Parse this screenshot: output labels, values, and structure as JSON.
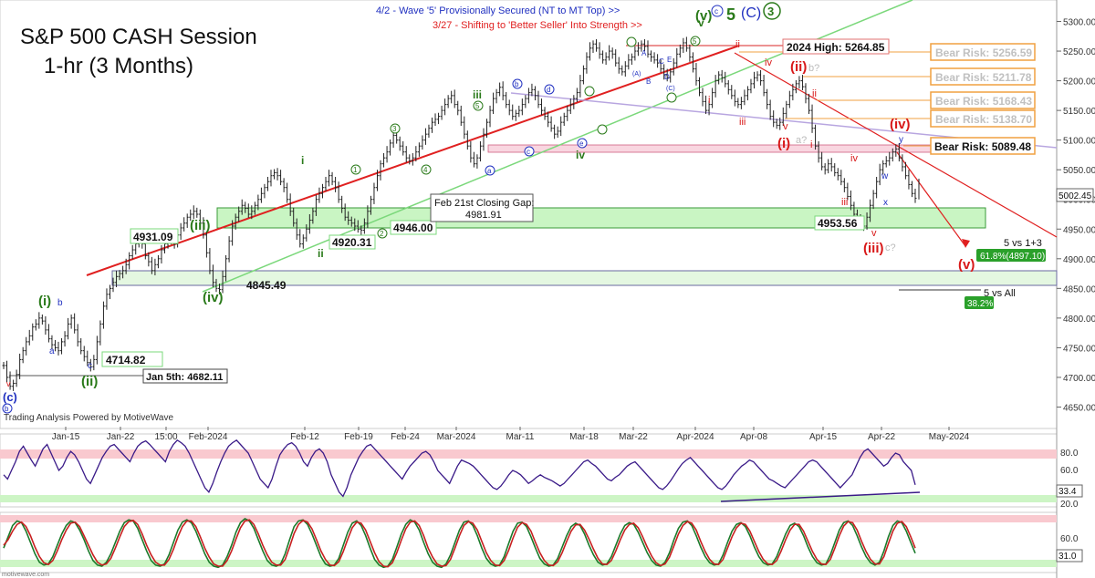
{
  "title_line1": "S&P 500 CASH Session",
  "title_line2": "1-hr (3 Months)",
  "notes": {
    "note_blue": "4/2 - Wave '5' Provisionally Secured (NT to MT Top) >>",
    "note_red": "3/27 - Shifting to 'Better Seller' Into Strength >>"
  },
  "credit": "Trading Analysis Powered by MotiveWave",
  "watermark": "motivewave.com",
  "colors": {
    "price": "#222222",
    "trend_red": "#e02020",
    "trend_green": "#7bd87b",
    "channel_purple": "#b8a6e0",
    "zone_green": "#c9f5c3",
    "zone_pink": "#f9d6e0",
    "wave_green": "#2a7a1a",
    "wave_red": "#d81818",
    "wave_blue": "#2030c0",
    "bear_orange": "#f0a040",
    "oscillator": "#3a1a88",
    "stoch_k": "#1a7a2a",
    "stoch_d": "#c82020"
  },
  "chart_data": [
    {
      "type": "line",
      "name": "price",
      "ylim": [
        4620,
        5330
      ],
      "y_ticks": [
        4650,
        4700,
        4750,
        4800,
        4850,
        4900,
        4950,
        5000,
        5050,
        5100,
        5150,
        5200,
        5250,
        5300
      ],
      "x_ticks": [
        "Jan-15",
        "Jan-22",
        "15:00",
        "Feb-2024",
        "Feb-12",
        "Feb-19",
        "Feb-24",
        "Mar-2024",
        "Mar-11",
        "Mar-18",
        "Mar-22",
        "Apr-2024",
        "Apr-08",
        "Apr-15",
        "Apr-22",
        "May-2024"
      ],
      "last_price": "5002.45",
      "series": [
        {
          "values": [
            4720,
            4700,
            4685,
            4690,
            4705,
            4730,
            4745,
            4760,
            4770,
            4785,
            4790,
            4800,
            4795,
            4780,
            4765,
            4755,
            4750,
            4745,
            4760,
            4770,
            4790,
            4800,
            4780,
            4760,
            4745,
            4735,
            4725,
            4718,
            4730,
            4760,
            4790,
            4820,
            4840,
            4850,
            4860,
            4870,
            4875,
            4880,
            4890,
            4905,
            4915,
            4925,
            4930,
            4925,
            4905,
            4895,
            4880,
            4890,
            4900,
            4915,
            4925,
            4935,
            4930,
            4925,
            4940,
            4952,
            4960,
            4970,
            4975,
            4980,
            4975,
            4960,
            4940,
            4910,
            4880,
            4860,
            4850,
            4848,
            4870,
            4900,
            4930,
            4955,
            4970,
            4980,
            4990,
            4985,
            4975,
            4980,
            4990,
            5000,
            5010,
            5020,
            5030,
            5040,
            5045,
            5040,
            5030,
            5020,
            5000,
            4980,
            4960,
            4940,
            4925,
            4935,
            4950,
            4965,
            4980,
            5000,
            5010,
            5020,
            5030,
            5040,
            5030,
            5020,
            5000,
            4985,
            4970,
            4965,
            4960,
            4955,
            4950,
            4948,
            4960,
            4980,
            5000,
            5020,
            5040,
            5060,
            5070,
            5080,
            5095,
            5108,
            5100,
            5090,
            5080,
            5070,
            5065,
            5070,
            5080,
            5090,
            5100,
            5110,
            5120,
            5130,
            5135,
            5140,
            5150,
            5160,
            5170,
            5175,
            5160,
            5150,
            5130,
            5110,
            5090,
            5070,
            5060,
            5070,
            5090,
            5110,
            5130,
            5150,
            5170,
            5180,
            5189,
            5175,
            5160,
            5150,
            5140,
            5145,
            5150,
            5160,
            5170,
            5180,
            5185,
            5175,
            5160,
            5150,
            5140,
            5130,
            5120,
            5110,
            5115,
            5130,
            5140,
            5150,
            5160,
            5170,
            5180,
            5200,
            5220,
            5240,
            5255,
            5262,
            5255,
            5245,
            5235,
            5240,
            5250,
            5245,
            5230,
            5220,
            5215,
            5225,
            5235,
            5240,
            5250,
            5255,
            5262,
            5258,
            5245,
            5240,
            5235,
            5230,
            5220,
            5210,
            5205,
            5215,
            5230,
            5245,
            5255,
            5264,
            5255,
            5240,
            5220,
            5200,
            5180,
            5165,
            5150,
            5160,
            5180,
            5200,
            5210,
            5205,
            5195,
            5185,
            5175,
            5165,
            5160,
            5165,
            5175,
            5185,
            5195,
            5205,
            5210,
            5200,
            5180,
            5160,
            5140,
            5130,
            5125,
            5130,
            5145,
            5160,
            5175,
            5185,
            5195,
            5200,
            5190,
            5170,
            5150,
            5120,
            5090,
            5070,
            5055,
            5050,
            5060,
            5055,
            5045,
            5040,
            5030,
            5020,
            5005,
            4990,
            4975,
            4965,
            4960,
            4955,
            4970,
            4990,
            5010,
            5030,
            5050,
            5060,
            5065,
            5070,
            5080,
            5085,
            5070,
            5055,
            5040,
            5025,
            5010,
            5002
          ]
        }
      ]
    },
    {
      "type": "line",
      "name": "oscillator",
      "ylim": [
        10,
        90
      ],
      "y_ticks": [
        20,
        40,
        60,
        80
      ],
      "y_tick_labels": [
        "20.0",
        "40.0",
        "60.0",
        "80.0"
      ],
      "last_value": "33.4",
      "series": [
        {
          "values": [
            45,
            40,
            50,
            60,
            72,
            78,
            70,
            62,
            55,
            65,
            75,
            80,
            70,
            60,
            50,
            55,
            65,
            72,
            68,
            60,
            50,
            40,
            35,
            45,
            55,
            65,
            72,
            78,
            80,
            75,
            70,
            65,
            60,
            70,
            78,
            82,
            84,
            80,
            75,
            70,
            65,
            60,
            72,
            80,
            85,
            82,
            78,
            70,
            60,
            50,
            40,
            30,
            25,
            35,
            48,
            60,
            70,
            78,
            82,
            85,
            80,
            75,
            70,
            60,
            50,
            40,
            35,
            30,
            40,
            55,
            68,
            75,
            80,
            82,
            78,
            70,
            60,
            55,
            65,
            72,
            75,
            70,
            60,
            45,
            35,
            25,
            20,
            30,
            45,
            55,
            65,
            72,
            78,
            80,
            75,
            70,
            65,
            60,
            55,
            50,
            45,
            40,
            48,
            55,
            60,
            65,
            70,
            72,
            68,
            60,
            50,
            45,
            40,
            35,
            45,
            55,
            62,
            60,
            58,
            55,
            50,
            45,
            40,
            35,
            30,
            28,
            32,
            38,
            45,
            50,
            48,
            45,
            40,
            35,
            38,
            42,
            45,
            42,
            40,
            38,
            35,
            32,
            35,
            40,
            45,
            50,
            55,
            60,
            62,
            58,
            55,
            50,
            45,
            40,
            38,
            42,
            45,
            50,
            55,
            58,
            60,
            55,
            50,
            45,
            40,
            35,
            30,
            28,
            32,
            38,
            45,
            52,
            58,
            62,
            65,
            60,
            55,
            50,
            45,
            40,
            35,
            30,
            28,
            32,
            38,
            45,
            50,
            55,
            58,
            62,
            60,
            55,
            50,
            45,
            40,
            38,
            35,
            32,
            30,
            35,
            40,
            45,
            50,
            55,
            60,
            62,
            60,
            55,
            50,
            45,
            40,
            35,
            30,
            35,
            40,
            45,
            55,
            65,
            72,
            75,
            70,
            65,
            60,
            55,
            58,
            65,
            70,
            68,
            60,
            55,
            50,
            33.4
          ]
        }
      ]
    },
    {
      "type": "line",
      "name": "stochastic",
      "ylim": [
        0,
        100
      ],
      "y_ticks": [
        20,
        40,
        60,
        80
      ],
      "y_tick_labels": [
        "20.0",
        "40.0",
        "60.0",
        "80.0"
      ],
      "last_value": "31.0",
      "series": [
        {
          "values": [
            40,
            60,
            80,
            88,
            85,
            70,
            50,
            30,
            15,
            10,
            12,
            25,
            45,
            65,
            80,
            88,
            85,
            72,
            55,
            35,
            18,
            10,
            8,
            15,
            30,
            50,
            70,
            85,
            90,
            88,
            75,
            55,
            35,
            18,
            10,
            8,
            12,
            28,
            50,
            72,
            86,
            90,
            85,
            70,
            50,
            30,
            15,
            8,
            6,
            10,
            25,
            45,
            68,
            85,
            92,
            88,
            75,
            55,
            35,
            18,
            10,
            8,
            12,
            30,
            55,
            78,
            88,
            90,
            82,
            65,
            45,
            25,
            12,
            8,
            10,
            22,
            45,
            68,
            84,
            88,
            80,
            62,
            40,
            20,
            10,
            6,
            8,
            20,
            42,
            65,
            82,
            90,
            86,
            72,
            50,
            30,
            15,
            8,
            6,
            12,
            28,
            50,
            72,
            86,
            88,
            80,
            62,
            40,
            22,
            12,
            8,
            10,
            25,
            48,
            70,
            84,
            86,
            78,
            60,
            40,
            22,
            12,
            8,
            10,
            22,
            42,
            62,
            78,
            84,
            80,
            65,
            45,
            28,
            15,
            10,
            12,
            25,
            45,
            65,
            80,
            85,
            82,
            68,
            50,
            32,
            18,
            10,
            8,
            15,
            32,
            55,
            75,
            86,
            88,
            80,
            62,
            42,
            25,
            14,
            10,
            12,
            28,
            50,
            70,
            82,
            85,
            78,
            62,
            42,
            25,
            14,
            10,
            12,
            25,
            45,
            65,
            80,
            84,
            78,
            62,
            42,
            25,
            14,
            10,
            12,
            28,
            50,
            72,
            85,
            88,
            80,
            62,
            42,
            25,
            14,
            10,
            15,
            35,
            60,
            80,
            88,
            85,
            70,
            50,
            31
          ]
        },
        {
          "values": [
            45,
            55,
            70,
            82,
            86,
            78,
            62,
            42,
            25,
            14,
            11,
            18,
            35,
            55,
            72,
            84,
            86,
            78,
            62,
            45,
            28,
            15,
            10,
            12,
            22,
            40,
            60,
            78,
            87,
            89,
            82,
            65,
            45,
            28,
            15,
            10,
            10,
            20,
            38,
            60,
            78,
            88,
            88,
            78,
            60,
            40,
            24,
            12,
            8,
            8,
            18,
            35,
            56,
            76,
            88,
            90,
            82,
            65,
            45,
            28,
            15,
            10,
            10,
            20,
            42,
            66,
            82,
            89,
            86,
            74,
            55,
            35,
            20,
            10,
            9,
            16,
            34,
            56,
            76,
            86,
            84,
            72,
            52,
            32,
            16,
            8,
            7,
            14,
            32,
            54,
            74,
            86,
            88,
            80,
            62,
            40,
            24,
            12,
            8,
            9,
            20,
            40,
            62,
            80,
            87,
            84,
            72,
            52,
            32,
            18,
            10,
            9,
            18,
            36,
            58,
            77,
            85,
            82,
            70,
            50,
            32,
            18,
            10,
            9,
            16,
            32,
            52,
            70,
            81,
            82,
            72,
            56,
            38,
            22,
            12,
            11,
            18,
            35,
            55,
            72,
            82,
            84,
            76,
            60,
            42,
            26,
            14,
            9,
            12,
            24,
            44,
            65,
            80,
            87,
            84,
            72,
            52,
            34,
            20,
            12,
            11,
            20,
            40,
            60,
            76,
            84,
            82,
            70,
            52,
            34,
            20,
            12,
            11,
            18,
            35,
            55,
            72,
            82,
            82,
            70,
            52,
            34,
            20,
            12,
            11,
            20,
            40,
            62,
            79,
            87,
            85,
            72,
            52,
            34,
            20,
            12,
            12,
            25,
            48,
            70,
            84,
            87,
            78,
            60,
            40
          ]
        }
      ]
    }
  ],
  "price_levels": {
    "l_4931": "4931.09",
    "l_4714": "4714.82",
    "l_jan5": "Jan 5th: 4682.11",
    "l_4845": "4845.49",
    "l_4920": "4920.31",
    "l_4946": "4946.00",
    "l_4953": "4953.56",
    "l_2024high": "2024 High: 5264.85",
    "gap_title": "Feb 21st Closing Gap:",
    "gap_value": "4981.91"
  },
  "bear_risk": {
    "b1": "Bear Risk: 5256.59",
    "b2": "Bear Risk: 5211.78",
    "b3": "Bear Risk: 5168.43",
    "b4": "Bear Risk: 5138.70",
    "b5": "Bear Risk: 5089.48"
  },
  "targets": {
    "t1_label": "5 vs 1+3",
    "t1_value": "61.8%(4897.10)",
    "t2_label": "5 vs All",
    "t2_value": "38.2%"
  },
  "wave_labels": {
    "w_c_blue": "(c)",
    "w_b_blue": "b",
    "w_v_small": "v",
    "w_i_green": "(i)",
    "w_b_small": "b",
    "w_a_small": "a",
    "w_c_small": "c",
    "w_ii_green": "(ii)",
    "w_iii_green": "(iii)",
    "w_iv_green": "(iv)",
    "w_1_green": "1",
    "w_ii_small": "ii",
    "w_i_small": "i",
    "w_2_green": "2",
    "w_3_green": "3",
    "w_4_green": "4",
    "w_5_green": "5",
    "w_iii_small": "iii",
    "w_a_blue": "a",
    "w_b_blue2": "b",
    "w_c_blue2": "c",
    "w_d_blue": "d",
    "w_e_blue": "e",
    "w_iv_small": "iv",
    "w_5_top": "5",
    "w_v_green": "(v)",
    "w_c_circle": "c",
    "w_5_big": "5",
    "w_C_big": "(C)",
    "w_3_circle": "3",
    "w_v_green2": "v",
    "w_A": "A",
    "w_B": "B",
    "w_C": "C",
    "w_D": "D",
    "w_E": "E",
    "w_Ap": "(A)",
    "w_Cp": "(C)",
    "w_ii_red": "ii",
    "w_iv_red": "iv",
    "w_i_red": "i",
    "w_iii_red": "iii",
    "w_v_red": "v",
    "w_ii_red_p": "(ii)",
    "w_b_q": "b?",
    "w_i_red2": "i",
    "w_ii_red2": "ii",
    "w_i_red_p": "(i)",
    "w_a_q": "a?",
    "w_iv_red2": "iv",
    "w_iii_red2": "iii",
    "w_v_red2": "v",
    "w_iii_red_p": "(iii)",
    "w_c_q": "c?",
    "w_iv_red_p": "(iv)",
    "w_w": "w",
    "w_x": "x",
    "w_y": "y",
    "w_v_red_p": "(v)"
  }
}
